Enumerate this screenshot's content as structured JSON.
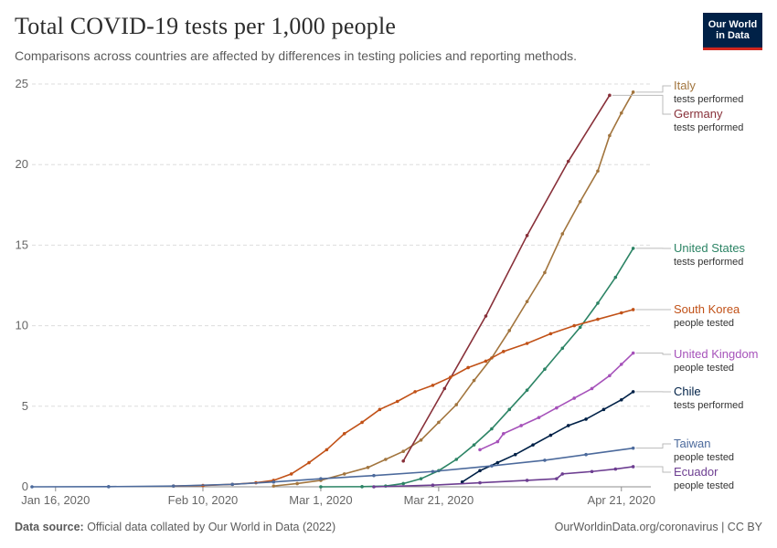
{
  "header": {
    "title": "Total COVID-19 tests per 1,000 people",
    "subtitle": "Comparisons across countries are affected by differences in testing policies and reporting methods."
  },
  "logo": {
    "line1": "Our World",
    "line2": "in Data"
  },
  "footer": {
    "source_label": "Data source:",
    "source_text": " Official data collated by Our World in Data (2022)",
    "link": "OurWorldinData.org/coronavirus | CC BY"
  },
  "chart_data": {
    "type": "line",
    "x_axis": {
      "start": "2020-01-12",
      "end": "2020-04-26",
      "ticks": [
        {
          "label": "Jan 16, 2020",
          "date": "2020-01-16"
        },
        {
          "label": "Feb 10, 2020",
          "date": "2020-02-10"
        },
        {
          "label": "Mar 1, 2020",
          "date": "2020-03-01"
        },
        {
          "label": "Mar 21, 2020",
          "date": "2020-03-21"
        },
        {
          "label": "Apr 21, 2020",
          "date": "2020-04-21"
        }
      ]
    },
    "ylim": [
      0,
      25
    ],
    "yticks": [
      0,
      5,
      10,
      15,
      20,
      25
    ],
    "grid": "horizontal-dashed",
    "legend": "right-end-labels",
    "series": [
      {
        "name": "Italy",
        "note": "tests performed",
        "color": "#a2753e",
        "points": [
          [
            "2020-02-22",
            0.05
          ],
          [
            "2020-02-26",
            0.2
          ],
          [
            "2020-03-01",
            0.4
          ],
          [
            "2020-03-05",
            0.8
          ],
          [
            "2020-03-09",
            1.2
          ],
          [
            "2020-03-12",
            1.7
          ],
          [
            "2020-03-15",
            2.2
          ],
          [
            "2020-03-18",
            2.9
          ],
          [
            "2020-03-21",
            4.0
          ],
          [
            "2020-03-24",
            5.1
          ],
          [
            "2020-03-27",
            6.6
          ],
          [
            "2020-03-30",
            8.0
          ],
          [
            "2020-04-02",
            9.7
          ],
          [
            "2020-04-05",
            11.5
          ],
          [
            "2020-04-08",
            13.3
          ],
          [
            "2020-04-11",
            15.7
          ],
          [
            "2020-04-14",
            17.7
          ],
          [
            "2020-04-17",
            19.6
          ],
          [
            "2020-04-19",
            21.8
          ],
          [
            "2020-04-21",
            23.2
          ],
          [
            "2020-04-23",
            24.5
          ]
        ]
      },
      {
        "name": "Germany",
        "note": "tests performed",
        "color": "#883039",
        "points": [
          [
            "2020-03-15",
            1.6
          ],
          [
            "2020-03-22",
            6.1
          ],
          [
            "2020-03-29",
            10.6
          ],
          [
            "2020-04-05",
            15.6
          ],
          [
            "2020-04-12",
            20.2
          ],
          [
            "2020-04-19",
            24.3
          ]
        ]
      },
      {
        "name": "United States",
        "note": "tests performed",
        "color": "#2c8465",
        "points": [
          [
            "2020-03-01",
            0.0
          ],
          [
            "2020-03-08",
            0.01
          ],
          [
            "2020-03-12",
            0.05
          ],
          [
            "2020-03-15",
            0.2
          ],
          [
            "2020-03-18",
            0.5
          ],
          [
            "2020-03-21",
            1.0
          ],
          [
            "2020-03-24",
            1.7
          ],
          [
            "2020-03-27",
            2.6
          ],
          [
            "2020-03-30",
            3.6
          ],
          [
            "2020-04-02",
            4.8
          ],
          [
            "2020-04-05",
            6.0
          ],
          [
            "2020-04-08",
            7.3
          ],
          [
            "2020-04-11",
            8.6
          ],
          [
            "2020-04-14",
            9.9
          ],
          [
            "2020-04-17",
            11.4
          ],
          [
            "2020-04-20",
            13.0
          ],
          [
            "2020-04-23",
            14.8
          ]
        ]
      },
      {
        "name": "South Korea",
        "note": "people tested",
        "color": "#c15117",
        "points": [
          [
            "2020-02-05",
            0.05
          ],
          [
            "2020-02-10",
            0.08
          ],
          [
            "2020-02-15",
            0.15
          ],
          [
            "2020-02-19",
            0.25
          ],
          [
            "2020-02-22",
            0.4
          ],
          [
            "2020-02-25",
            0.8
          ],
          [
            "2020-02-28",
            1.5
          ],
          [
            "2020-03-02",
            2.3
          ],
          [
            "2020-03-05",
            3.3
          ],
          [
            "2020-03-08",
            4.0
          ],
          [
            "2020-03-11",
            4.8
          ],
          [
            "2020-03-14",
            5.3
          ],
          [
            "2020-03-17",
            5.9
          ],
          [
            "2020-03-20",
            6.3
          ],
          [
            "2020-03-23",
            6.8
          ],
          [
            "2020-03-26",
            7.4
          ],
          [
            "2020-03-29",
            7.8
          ],
          [
            "2020-04-01",
            8.4
          ],
          [
            "2020-04-05",
            8.9
          ],
          [
            "2020-04-09",
            9.5
          ],
          [
            "2020-04-13",
            10.0
          ],
          [
            "2020-04-17",
            10.4
          ],
          [
            "2020-04-21",
            10.8
          ],
          [
            "2020-04-23",
            11.0
          ]
        ]
      },
      {
        "name": "United Kingdom",
        "note": "people tested",
        "color": "#a652ba",
        "points": [
          [
            "2020-03-28",
            2.3
          ],
          [
            "2020-03-31",
            2.8
          ],
          [
            "2020-04-01",
            3.3
          ],
          [
            "2020-04-04",
            3.8
          ],
          [
            "2020-04-07",
            4.3
          ],
          [
            "2020-04-10",
            4.9
          ],
          [
            "2020-04-13",
            5.5
          ],
          [
            "2020-04-16",
            6.1
          ],
          [
            "2020-04-19",
            6.9
          ],
          [
            "2020-04-21",
            7.6
          ],
          [
            "2020-04-23",
            8.3
          ]
        ]
      },
      {
        "name": "Chile",
        "note": "tests performed",
        "color": "#002147",
        "points": [
          [
            "2020-03-25",
            0.3
          ],
          [
            "2020-03-28",
            1.0
          ],
          [
            "2020-03-31",
            1.5
          ],
          [
            "2020-04-03",
            2.0
          ],
          [
            "2020-04-06",
            2.6
          ],
          [
            "2020-04-09",
            3.2
          ],
          [
            "2020-04-12",
            3.8
          ],
          [
            "2020-04-15",
            4.2
          ],
          [
            "2020-04-18",
            4.8
          ],
          [
            "2020-04-21",
            5.4
          ],
          [
            "2020-04-23",
            5.9
          ]
        ]
      },
      {
        "name": "Taiwan",
        "note": "people tested",
        "color": "#4c6a9c",
        "points": [
          [
            "2020-01-12",
            0.0
          ],
          [
            "2020-01-25",
            0.01
          ],
          [
            "2020-02-05",
            0.05
          ],
          [
            "2020-02-15",
            0.15
          ],
          [
            "2020-02-22",
            0.3
          ],
          [
            "2020-03-01",
            0.5
          ],
          [
            "2020-03-10",
            0.7
          ],
          [
            "2020-03-20",
            0.95
          ],
          [
            "2020-03-30",
            1.3
          ],
          [
            "2020-04-08",
            1.65
          ],
          [
            "2020-04-15",
            2.0
          ],
          [
            "2020-04-23",
            2.4
          ]
        ]
      },
      {
        "name": "Ecuador",
        "note": "people tested",
        "color": "#6d3e91",
        "points": [
          [
            "2020-03-10",
            0.0
          ],
          [
            "2020-03-20",
            0.1
          ],
          [
            "2020-03-28",
            0.25
          ],
          [
            "2020-04-05",
            0.4
          ],
          [
            "2020-04-10",
            0.5
          ],
          [
            "2020-04-11",
            0.8
          ],
          [
            "2020-04-16",
            0.95
          ],
          [
            "2020-04-20",
            1.1
          ],
          [
            "2020-04-23",
            1.25
          ]
        ]
      }
    ]
  }
}
